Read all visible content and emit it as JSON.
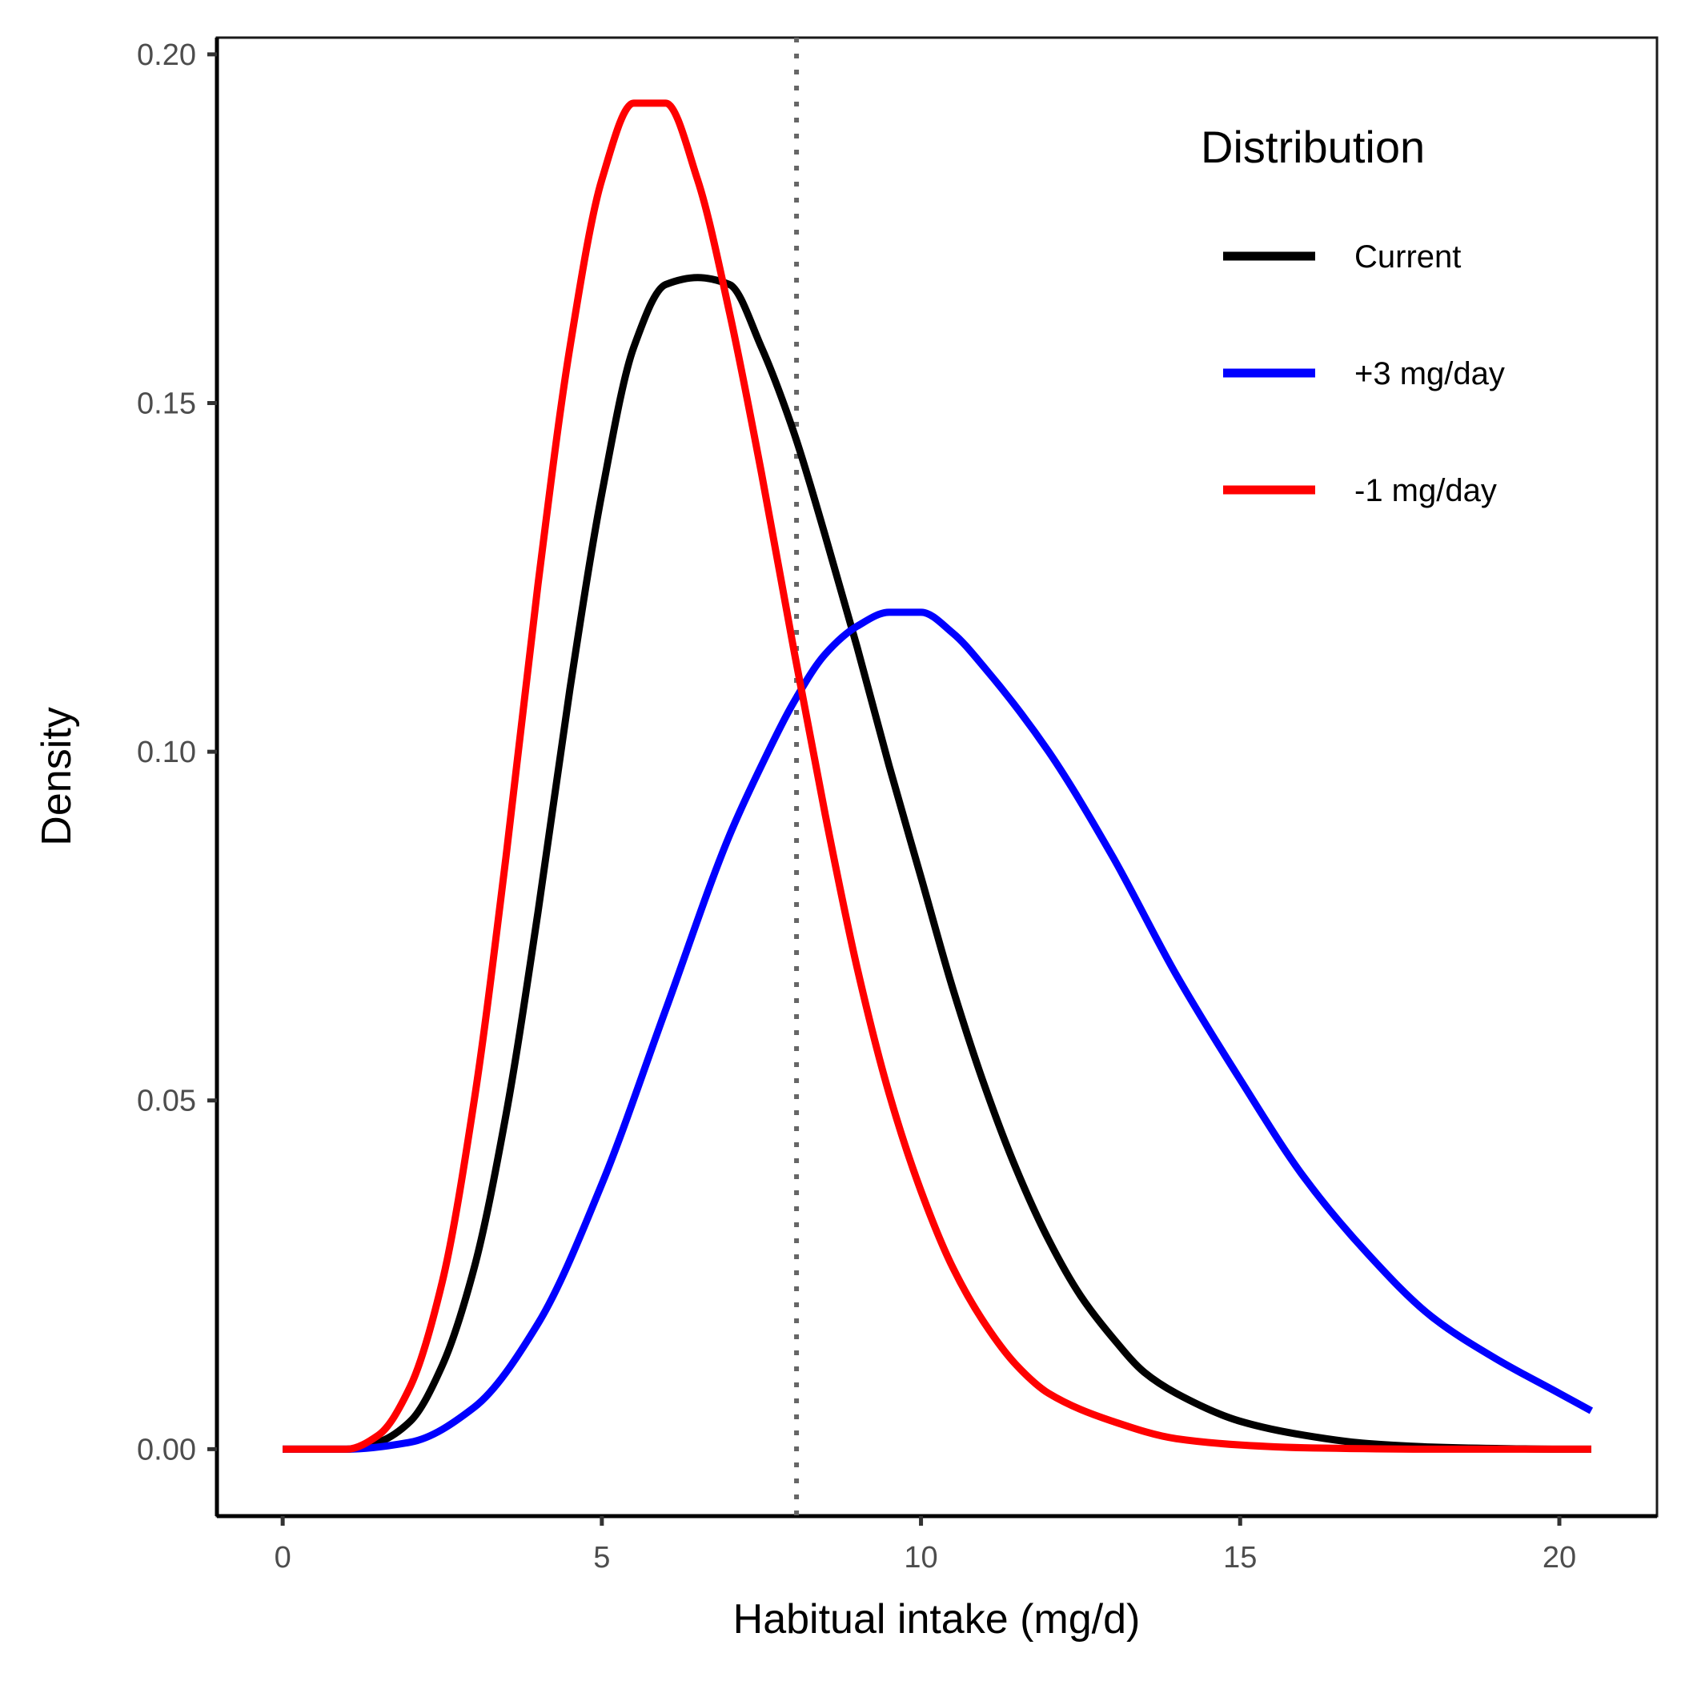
{
  "chart_data": {
    "type": "line",
    "title": "",
    "xlabel": "Habitual intake (mg/d)",
    "ylabel": "Density",
    "xlim": [
      -1.03,
      21.53
    ],
    "ylim": [
      -0.0096,
      0.2024
    ],
    "x_ticks": [
      0,
      5,
      10,
      15,
      20
    ],
    "x_tick_labels": [
      "0",
      "5",
      "10",
      "15",
      "20"
    ],
    "y_ticks": [
      0,
      0.05,
      0.1,
      0.15,
      0.2
    ],
    "y_tick_labels": [
      "0.00",
      "0.05",
      "0.10",
      "0.15",
      "0.20"
    ],
    "grid": false,
    "legend": {
      "title": "Distribution",
      "position": "top-right",
      "entries": [
        "Current",
        "+3 mg/day",
        "-1 mg/day"
      ]
    },
    "reference_line": {
      "orientation": "vertical",
      "x": 8.05,
      "style": "dotted",
      "color": "#666666"
    },
    "series": [
      {
        "name": "Current",
        "color": "#000000",
        "x": [
          0,
          1,
          1.5,
          2,
          2.5,
          3,
          3.5,
          4,
          4.5,
          5,
          5.5,
          6,
          6.5,
          7,
          7.5,
          8,
          8.5,
          9,
          9.5,
          10,
          10.5,
          11,
          11.5,
          12,
          12.5,
          13,
          13.5,
          14,
          15,
          16,
          17,
          18,
          19,
          20,
          20.5
        ],
        "values": [
          0,
          0,
          0.001,
          0.004,
          0.012,
          0.026,
          0.048,
          0.077,
          0.109,
          0.137,
          0.158,
          0.167,
          0.168,
          0.167,
          0.158,
          0.146,
          0.131,
          0.115,
          0.098,
          0.082,
          0.066,
          0.052,
          0.04,
          0.03,
          0.022,
          0.016,
          0.011,
          0.008,
          0.004,
          0.002,
          0.0008,
          0.0003,
          0.0001,
          0,
          0
        ]
      },
      {
        "name": "+3 mg/day",
        "color": "#0000ff",
        "x": [
          0,
          1,
          2,
          3,
          4,
          5,
          6,
          7,
          7.5,
          8,
          8.5,
          9,
          9.5,
          10,
          10.5,
          11,
          12,
          13,
          14,
          15,
          16,
          17,
          18,
          19,
          20,
          20.5
        ],
        "values": [
          0,
          0,
          0.001,
          0.006,
          0.018,
          0.038,
          0.063,
          0.088,
          0.098,
          0.107,
          0.114,
          0.118,
          0.12,
          0.12,
          0.117,
          0.112,
          0.1,
          0.085,
          0.068,
          0.053,
          0.039,
          0.028,
          0.019,
          0.013,
          0.008,
          0.0055
        ]
      },
      {
        "name": "-1 mg/day",
        "color": "#ff0000",
        "x": [
          0,
          1,
          1.5,
          2,
          2.5,
          3,
          3.5,
          4,
          4.5,
          5,
          5.5,
          6,
          6.5,
          7,
          7.5,
          8,
          8.5,
          9,
          9.5,
          10,
          10.5,
          11,
          11.5,
          12,
          13,
          14,
          15,
          16,
          18,
          20,
          20.5
        ],
        "values": [
          0,
          0,
          0.002,
          0.009,
          0.024,
          0.05,
          0.085,
          0.124,
          0.158,
          0.182,
          0.193,
          0.193,
          0.182,
          0.163,
          0.14,
          0.115,
          0.091,
          0.069,
          0.051,
          0.037,
          0.026,
          0.018,
          0.012,
          0.008,
          0.004,
          0.0015,
          0.0006,
          0.0002,
          0,
          0,
          0
        ]
      }
    ]
  }
}
